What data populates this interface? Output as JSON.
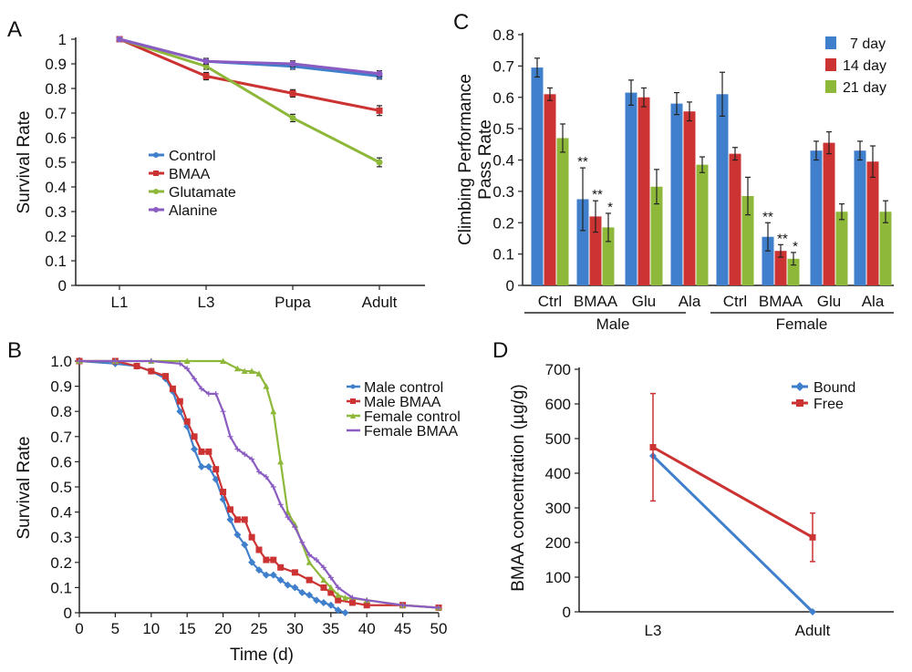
{
  "colors": {
    "blue": "#3f7fcc",
    "red": "#cc3333",
    "green": "#8db83a",
    "purple": "#8a5cc2"
  },
  "chart_data": [
    {
      "panel": "A",
      "type": "line",
      "categories": [
        "L1",
        "L3",
        "Pupa",
        "Adult"
      ],
      "ylabel": "Survival Rate",
      "ylim": [
        0,
        1
      ],
      "yticks": [
        "0",
        "0.1",
        "0.2",
        "0.3",
        "0.4",
        "0.5",
        "0.6",
        "0.7",
        "0.8",
        "0.9",
        "1"
      ],
      "series": [
        {
          "name": "Control",
          "color": "#3f7fcc",
          "values": [
            1.0,
            0.91,
            0.89,
            0.85
          ],
          "err": [
            0.005,
            0.012,
            0.012,
            0.012
          ]
        },
        {
          "name": "BMAA",
          "color": "#cc3333",
          "values": [
            1.0,
            0.85,
            0.78,
            0.71
          ],
          "err": [
            0.005,
            0.015,
            0.015,
            0.02
          ]
        },
        {
          "name": "Glutamate",
          "color": "#8db83a",
          "values": [
            1.0,
            0.89,
            0.68,
            0.5
          ],
          "err": [
            0.005,
            0.012,
            0.015,
            0.018
          ]
        },
        {
          "name": "Alanine",
          "color": "#8a5cc2",
          "values": [
            1.0,
            0.91,
            0.9,
            0.86
          ],
          "err": [
            0.005,
            0.012,
            0.012,
            0.012
          ]
        }
      ]
    },
    {
      "panel": "B",
      "type": "line",
      "xlabel": "Time (d)",
      "ylabel": "Survival Rate",
      "xlim": [
        0,
        50
      ],
      "ylim": [
        0,
        1
      ],
      "xticks": [
        "0",
        "5",
        "10",
        "15",
        "20",
        "25",
        "30",
        "35",
        "40",
        "45",
        "50"
      ],
      "yticks": [
        "0",
        "0.1",
        "0.2",
        "0.3",
        "0.4",
        "0.5",
        "0.6",
        "0.7",
        "0.8",
        "0.9",
        "1.0"
      ],
      "series": [
        {
          "name": "Male control",
          "color": "#3f7fcc",
          "x": [
            0,
            5,
            8,
            10,
            12,
            13,
            14,
            15,
            16,
            17,
            18,
            19,
            20,
            21,
            22,
            23,
            24,
            25,
            26,
            27,
            28,
            29,
            30,
            31,
            32,
            33,
            34,
            35,
            36,
            37
          ],
          "y": [
            1.0,
            0.99,
            0.98,
            0.96,
            0.93,
            0.88,
            0.8,
            0.74,
            0.65,
            0.58,
            0.58,
            0.53,
            0.45,
            0.37,
            0.31,
            0.27,
            0.2,
            0.17,
            0.15,
            0.15,
            0.13,
            0.11,
            0.1,
            0.08,
            0.07,
            0.05,
            0.04,
            0.03,
            0.01,
            0
          ]
        },
        {
          "name": "Male BMAA",
          "color": "#cc3333",
          "x": [
            0,
            5,
            8,
            10,
            12,
            13,
            14,
            15,
            16,
            17,
            18,
            19,
            20,
            21,
            22,
            23,
            24,
            25,
            26,
            27,
            28,
            30,
            32,
            34,
            35,
            36,
            38,
            40,
            45,
            50
          ],
          "y": [
            1.0,
            1.0,
            0.98,
            0.96,
            0.94,
            0.89,
            0.84,
            0.76,
            0.7,
            0.64,
            0.64,
            0.57,
            0.48,
            0.41,
            0.37,
            0.37,
            0.3,
            0.25,
            0.21,
            0.21,
            0.18,
            0.16,
            0.13,
            0.1,
            0.08,
            0.05,
            0.04,
            0.03,
            0.03,
            0.02
          ]
        },
        {
          "name": "Female control",
          "color": "#8db83a",
          "x": [
            0,
            5,
            10,
            15,
            20,
            22,
            23,
            24,
            25,
            26,
            27,
            28,
            29,
            30,
            32,
            34,
            35,
            36,
            37,
            40,
            45,
            50
          ],
          "y": [
            1.0,
            1.0,
            1.0,
            1.0,
            1.0,
            0.97,
            0.96,
            0.96,
            0.95,
            0.9,
            0.8,
            0.6,
            0.4,
            0.35,
            0.2,
            0.13,
            0.1,
            0.07,
            0.06,
            0.05,
            0.03,
            0.02
          ]
        },
        {
          "name": "Female BMAA",
          "color": "#8a5cc2",
          "x": [
            0,
            5,
            10,
            14,
            15,
            16,
            17,
            18,
            19,
            20,
            21,
            22,
            23,
            24,
            25,
            26,
            27,
            28,
            29,
            30,
            31,
            32,
            33,
            34,
            35,
            36,
            38,
            40,
            45,
            50
          ],
          "y": [
            1.0,
            1.0,
            1.0,
            0.99,
            0.97,
            0.93,
            0.89,
            0.87,
            0.87,
            0.8,
            0.7,
            0.65,
            0.63,
            0.61,
            0.56,
            0.54,
            0.5,
            0.43,
            0.38,
            0.34,
            0.28,
            0.23,
            0.21,
            0.18,
            0.14,
            0.1,
            0.06,
            0.05,
            0.03,
            0.02
          ]
        }
      ]
    },
    {
      "panel": "C",
      "type": "bar",
      "ylabel": "Climbing Performance\nPass Rate",
      "ylim": [
        0,
        0.8
      ],
      "yticks": [
        "0",
        "0.1",
        "0.2",
        "0.3",
        "0.4",
        "0.5",
        "0.6",
        "0.7",
        "0.8"
      ],
      "categories": [
        "Ctrl",
        "BMAA",
        "Glu",
        "Ala",
        "Ctrl",
        "BMAA",
        "Glu",
        "Ala"
      ],
      "groups": [
        "Male",
        "Female"
      ],
      "series": [
        {
          "name": "7 day",
          "color": "#3f7fcc",
          "values": [
            0.695,
            0.275,
            0.615,
            0.58,
            0.61,
            0.155,
            0.43,
            0.43
          ],
          "err": [
            0.03,
            0.1,
            0.04,
            0.035,
            0.07,
            0.045,
            0.03,
            0.03
          ]
        },
        {
          "name": "14 day",
          "color": "#cc3333",
          "values": [
            0.61,
            0.22,
            0.6,
            0.555,
            0.42,
            0.11,
            0.455,
            0.395
          ],
          "err": [
            0.02,
            0.05,
            0.03,
            0.03,
            0.02,
            0.02,
            0.035,
            0.05
          ]
        },
        {
          "name": "21 day",
          "color": "#8db83a",
          "values": [
            0.47,
            0.185,
            0.315,
            0.385,
            0.285,
            0.085,
            0.235,
            0.235
          ],
          "err": [
            0.045,
            0.045,
            0.055,
            0.025,
            0.06,
            0.02,
            0.025,
            0.035
          ]
        }
      ],
      "annotations": [
        [
          "**",
          "**",
          "*"
        ],
        [
          "**",
          "**",
          "*"
        ]
      ]
    },
    {
      "panel": "D",
      "type": "line",
      "categories": [
        "L3",
        "Adult"
      ],
      "ylabel": "BMAA concentration (µg/g)",
      "ylim": [
        0,
        700
      ],
      "yticks": [
        "0",
        "100",
        "200",
        "300",
        "400",
        "500",
        "600",
        "700"
      ],
      "series": [
        {
          "name": "Bound",
          "color": "#3f7fcc",
          "values": [
            450,
            0
          ],
          "err": [
            0,
            0
          ]
        },
        {
          "name": "Free",
          "color": "#cc3333",
          "values": [
            475,
            215
          ],
          "err": [
            155,
            70
          ]
        }
      ]
    }
  ]
}
